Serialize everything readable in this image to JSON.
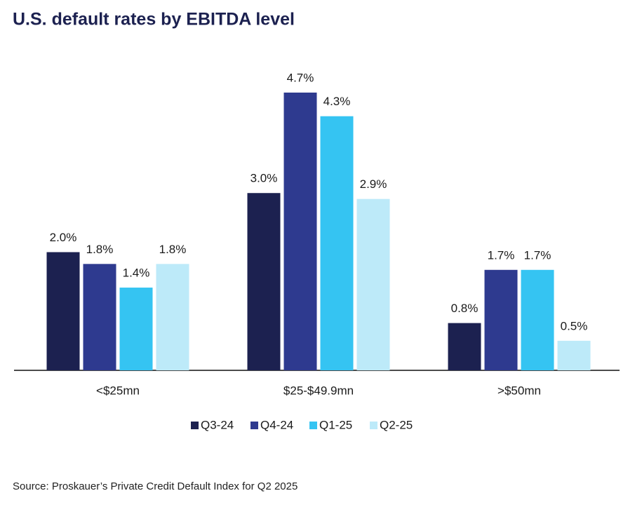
{
  "chart_data": {
    "type": "bar",
    "title": "U.S. default rates by EBITDA level",
    "categories": [
      "<$25mn",
      "$25-$49.9mn",
      ">$50mn"
    ],
    "series": [
      {
        "name": "Q3-24",
        "color": "#1c2150",
        "values": [
          2.0,
          3.0,
          0.8
        ],
        "value_labels": [
          "2.0%",
          "3.0%",
          "0.8%"
        ]
      },
      {
        "name": "Q4-24",
        "color": "#2e3a8f",
        "values": [
          1.8,
          4.7,
          1.7
        ],
        "value_labels": [
          "1.8%",
          "4.7%",
          "1.7%"
        ]
      },
      {
        "name": "Q1-25",
        "color": "#35c4f2",
        "values": [
          1.4,
          4.3,
          1.7
        ],
        "value_labels": [
          "1.4%",
          "4.3%",
          "1.7%"
        ]
      },
      {
        "name": "Q2-25",
        "color": "#bdeaf9",
        "values": [
          1.8,
          2.9,
          0.5
        ],
        "value_labels": [
          "1.8%",
          "2.9%",
          "0.5%"
        ]
      }
    ],
    "legend": "bottom",
    "source": "Source: Proskauer’s Private Credit Default Index for Q2 2025"
  }
}
